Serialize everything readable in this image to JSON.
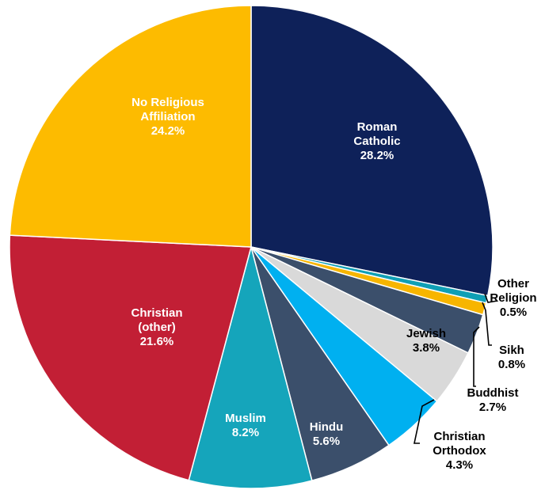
{
  "chart_data": {
    "type": "pie",
    "title": "",
    "start_angle_deg": 0,
    "direction": "clockwise",
    "legend": "none",
    "slices": [
      {
        "label_lines": [
          "Roman",
          "Catholic"
        ],
        "value_label": "28.2%",
        "value": 28.2,
        "color": "#0e2159",
        "label_color": "#ffffff",
        "label_mode": "inside"
      },
      {
        "label_lines": [
          "Other",
          "Religion"
        ],
        "value_label": "0.5%",
        "value": 0.5,
        "color": "#0f9fb5",
        "label_color": "#000000",
        "label_mode": "callout"
      },
      {
        "label_lines": [
          "Sikh"
        ],
        "value_label": "0.8%",
        "value": 0.8,
        "color": "#f7b500",
        "label_color": "#000000",
        "label_mode": "callout"
      },
      {
        "label_lines": [
          "Buddhist"
        ],
        "value_label": "2.7%",
        "value": 2.7,
        "color": "#3b4f6b",
        "label_color": "#000000",
        "label_mode": "callout"
      },
      {
        "label_lines": [
          "Jewish"
        ],
        "value_label": "3.8%",
        "value": 3.8,
        "color": "#d9d9d9",
        "label_color": "#000000",
        "label_mode": "inside"
      },
      {
        "label_lines": [
          "Christian",
          "Orthodox"
        ],
        "value_label": "4.3%",
        "value": 4.3,
        "color": "#00b0f0",
        "label_color": "#000000",
        "label_mode": "callout"
      },
      {
        "label_lines": [
          "Hindu"
        ],
        "value_label": "5.6%",
        "value": 5.6,
        "color": "#3b4f6b",
        "label_color": "#ffffff",
        "label_mode": "inside"
      },
      {
        "label_lines": [
          "Muslim"
        ],
        "value_label": "8.2%",
        "value": 8.2,
        "color": "#15a5bb",
        "label_color": "#ffffff",
        "label_mode": "inside"
      },
      {
        "label_lines": [
          "Christian",
          "(other)"
        ],
        "value_label": "21.6%",
        "value": 21.6,
        "color": "#c21f35",
        "label_color": "#ffffff",
        "label_mode": "inside"
      },
      {
        "label_lines": [
          "No Religious",
          "Affiliation"
        ],
        "value_label": "24.2%",
        "value": 24.2,
        "color": "#fdbb00",
        "label_color": "#ffffff",
        "label_mode": "inside"
      }
    ]
  }
}
